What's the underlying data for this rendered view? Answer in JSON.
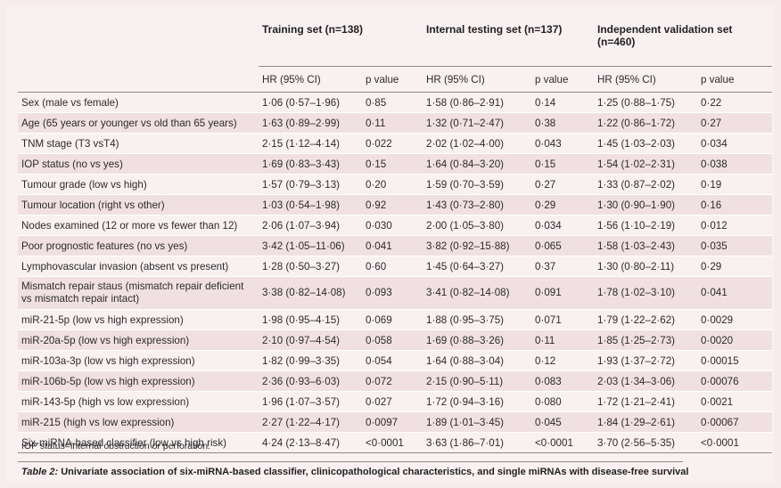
{
  "table": {
    "groups": [
      {
        "label": "Training set (n=138)"
      },
      {
        "label": "Internal testing set (n=137)"
      },
      {
        "label": "Independent validation set (n=460)"
      }
    ],
    "subheaders": [
      "HR (95% CI)",
      "p value",
      "HR (95% CI)",
      "p value",
      "HR (95% CI)",
      "p value"
    ],
    "rows": [
      {
        "label": "Sex (male vs female)",
        "cells": [
          "1·06 (0·57–1·96)",
          "0·85",
          "1·58 (0·86–2·91)",
          "0·14",
          "1·25 (0·88–1·75)",
          "0·22"
        ]
      },
      {
        "label": "Age (65 years or younger vs old than 65 years)",
        "cells": [
          "1·63 (0·89–2·99)",
          "0·11",
          "1·32 (0·71–2·47)",
          "0·38",
          "1·22 (0·86–1·72)",
          "0·27"
        ]
      },
      {
        "label": "TNM stage (T3 vsT4)",
        "cells": [
          "2·15 (1·12–4·14)",
          "0·022",
          "2·02 (1·02–4·00)",
          "0·043",
          "1·45 (1·03–2·03)",
          "0·034"
        ]
      },
      {
        "label": "IOP status (no vs yes)",
        "cells": [
          "1·69 (0·83–3·43)",
          "0·15",
          "1·64 (0·84–3·20)",
          "0·15",
          "1·54 (1·02–2·31)",
          "0·038"
        ]
      },
      {
        "label": "Tumour grade (low vs high)",
        "cells": [
          "1·57 (0·79–3·13)",
          "0·20",
          "1·59 (0·70–3·59)",
          "0·27",
          "1·33 (0·87–2·02)",
          "0·19"
        ]
      },
      {
        "label": "Tumour location (right vs other)",
        "cells": [
          "1·03 (0·54–1·98)",
          "0·92",
          "1·43 (0·73–2·80)",
          "0·29",
          "1·30 (0·90–1·90)",
          "0·16"
        ]
      },
      {
        "label": "Nodes examined (12 or more vs fewer than 12)",
        "cells": [
          "2·06 (1·07–3·94)",
          "0·030",
          "2·00 (1·05–3·80)",
          "0·034",
          "1·56 (1·10–2·19)",
          "0·012"
        ]
      },
      {
        "label": "Poor prognostic features (no vs yes)",
        "cells": [
          "3·42 (1·05–11·06)",
          "0·041",
          "3·82 (0·92–15·88)",
          "0·065",
          "1·58 (1·03–2·43)",
          "0·035"
        ]
      },
      {
        "label": "Lymphovascular invasion (absent vs present)",
        "cells": [
          "1·28 (0·50–3·27)",
          "0·60",
          "1·45 (0·64–3·27)",
          "0·37",
          "1·30 (0·80–2·11)",
          "0·29"
        ]
      },
      {
        "label": "Mismatch repair staus (mismatch repair deficient vs mismatch repair intact)",
        "tall": true,
        "cells": [
          "3·38 (0·82–14·08)",
          "0·093",
          "3·41 (0·82–14·08)",
          "0·091",
          "1·78 (1·02–3·10)",
          "0·041"
        ]
      },
      {
        "label": "miR-21-5p (low vs high expression)",
        "cells": [
          "1·98 (0·95–4·15)",
          "0·069",
          "1·88 (0·95–3·75)",
          "0·071",
          "1·79 (1·22–2·62)",
          "0·0029"
        ]
      },
      {
        "label": "miR-20a-5p (low vs high expression)",
        "cells": [
          "2·10 (0·97–4·54)",
          "0·058",
          "1·69 (0·88–3·26)",
          "0·11",
          "1·85 (1·25–2·73)",
          "0·0020"
        ]
      },
      {
        "label": "miR-103a-3p (low vs high expression)",
        "cells": [
          "1·82 (0·99–3·35)",
          "0·054",
          "1·64 (0·88–3·04)",
          "0·12",
          "1·93 (1·37–2·72)",
          "0·00015"
        ]
      },
      {
        "label": "miR-106b-5p (low vs high expression)",
        "cells": [
          "2·36 (0·93–6·03)",
          "0·072",
          "2·15 (0·90–5·11)",
          "0·083",
          "2·03 (1·34–3·06)",
          "0·00076"
        ]
      },
      {
        "label": "miR-143-5p (high vs low expression)",
        "cells": [
          "1·96 (1·07–3·57)",
          "0·027",
          "1·72 (0·94–3·16)",
          "0·080",
          "1·72 (1·21–2·41)",
          "0·0021"
        ]
      },
      {
        "label": "miR-215 (high vs low expression)",
        "cells": [
          "2·27 (1·22–4·17)",
          "0·0097",
          "1·89 (1·01–3·45)",
          "0·045",
          "1·84 (1·29–2·61)",
          "0·00067"
        ]
      },
      {
        "label": "Six-miRNA-based classifier (low vs high risk)",
        "cells": [
          "4·24 (2·13–8·47)",
          "<0·0001",
          "3·63 (1·86–7·01)",
          "<0·0001",
          "3·70 (2·56–5·35)",
          "<0·0001"
        ]
      }
    ]
  },
  "footnote": "IOP status=internal obstruction or perforation.",
  "caption": {
    "label": "Table 2:",
    "text": " Univariate association of six-miRNA-based classifier, clinicopathological characteristics, and single miRNAs with disease-free survival"
  }
}
